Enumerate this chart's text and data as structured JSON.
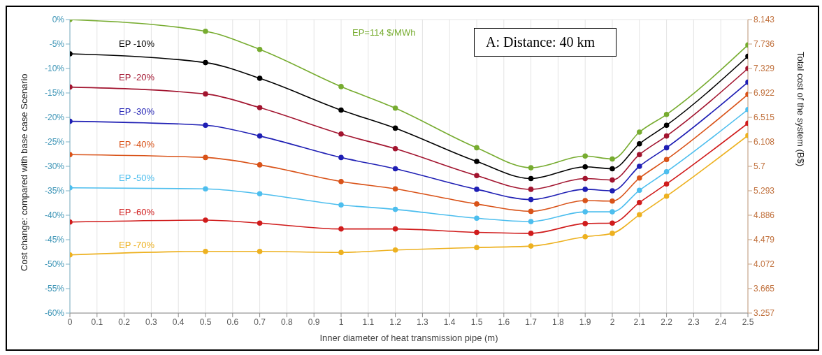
{
  "chart_data": {
    "type": "line",
    "xlabel": "Inner diameter of heat transmission pipe (m)",
    "ylabel": "Cost change: compared with base case Scenario",
    "y2label": "Total cost of the system (B$)",
    "x": [
      0,
      0.5,
      0.7,
      1,
      1.2,
      1.5,
      1.7,
      1.9,
      2,
      2.1,
      2.2,
      2.5
    ],
    "series": [
      {
        "name": "EP=114 $/MWh",
        "color": "#77ac30",
        "values": [
          0,
          -2.4,
          -6.1,
          -13.7,
          -18.1,
          -26.2,
          -30.3,
          -27.9,
          -28.5,
          -23.0,
          -19.4,
          -5.2
        ]
      },
      {
        "name": "EP -10%",
        "color": "#000000",
        "values": [
          -7.0,
          -8.8,
          -12.0,
          -18.5,
          -22.2,
          -29.0,
          -32.5,
          -30.1,
          -30.5,
          -25.4,
          -21.6,
          -7.5
        ]
      },
      {
        "name": "EP -20%",
        "color": "#a2142f",
        "values": [
          -13.8,
          -15.2,
          -18.0,
          -23.4,
          -26.4,
          -31.9,
          -34.7,
          -32.5,
          -32.8,
          -27.6,
          -23.8,
          -10.0
        ]
      },
      {
        "name": "EP -30%",
        "color": "#1f1fb4",
        "values": [
          -20.8,
          -21.6,
          -23.8,
          -28.2,
          -30.5,
          -34.7,
          -36.8,
          -34.7,
          -35.0,
          -30.0,
          -26.2,
          -12.8
        ]
      },
      {
        "name": "EP -40%",
        "color": "#d95319",
        "values": [
          -27.6,
          -28.2,
          -29.7,
          -33.1,
          -34.6,
          -37.7,
          -39.2,
          -37.0,
          -37.1,
          -32.4,
          -28.6,
          -15.3
        ]
      },
      {
        "name": "EP -50%",
        "color": "#4dbeee",
        "values": [
          -34.4,
          -34.6,
          -35.6,
          -37.9,
          -38.8,
          -40.6,
          -41.3,
          -39.3,
          -39.3,
          -34.9,
          -31.1,
          -18.4
        ]
      },
      {
        "name": "EP -60%",
        "color": "#d01c1c",
        "values": [
          -41.4,
          -41.0,
          -41.6,
          -42.8,
          -42.8,
          -43.5,
          -43.7,
          -41.7,
          -41.6,
          -37.4,
          -33.6,
          -21.2
        ]
      },
      {
        "name": "EP -70%",
        "color": "#edb120",
        "values": [
          -48.1,
          -47.4,
          -47.4,
          -47.6,
          -47.1,
          -46.6,
          -46.3,
          -44.4,
          -43.7,
          -39.9,
          -36.1,
          -23.7
        ]
      }
    ],
    "xlim": [
      0,
      2.5
    ],
    "xticks": [
      0,
      0.1,
      0.2,
      0.3,
      0.4,
      0.5,
      0.6,
      0.7,
      0.8,
      0.9,
      1,
      1.1,
      1.2,
      1.3,
      1.4,
      1.5,
      1.6,
      1.7,
      1.8,
      1.9,
      2,
      2.1,
      2.2,
      2.3,
      2.4,
      2.5
    ],
    "ylim": [
      -60,
      0
    ],
    "yticks": [
      {
        "value": 0,
        "label": "0%"
      },
      {
        "value": -5,
        "label": "-5%"
      },
      {
        "value": -10,
        "label": "-10%"
      },
      {
        "value": -15,
        "label": "-15%"
      },
      {
        "value": -20,
        "label": "-20%"
      },
      {
        "value": -25,
        "label": "-25%"
      },
      {
        "value": -30,
        "label": "-30%"
      },
      {
        "value": -35,
        "label": "-35%"
      },
      {
        "value": -40,
        "label": "-40%"
      },
      {
        "value": -45,
        "label": "-45%"
      },
      {
        "value": -50,
        "label": "-50%"
      },
      {
        "value": -55,
        "label": "-55%"
      },
      {
        "value": -60,
        "label": "-60%"
      }
    ],
    "y2lim": [
      3.257,
      8.143
    ],
    "y2ticks": [
      3.257,
      3.665,
      4.072,
      4.479,
      4.886,
      5.293,
      5.7,
      6.108,
      6.515,
      6.922,
      7.329,
      7.736,
      8.143
    ],
    "annotations": [
      "A: Distance: 40 km"
    ],
    "grid": true,
    "marker": "circle",
    "line_style": "solid"
  }
}
